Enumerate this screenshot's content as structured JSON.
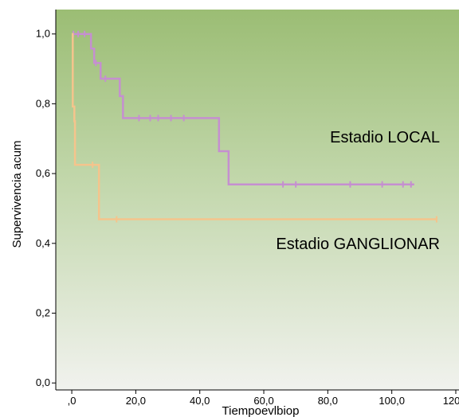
{
  "chart_data": {
    "type": "line",
    "subtype": "kaplan-meier survival step curves",
    "xlabel": "Tiempoevlbiop",
    "ylabel": "Supervivencia acum",
    "xlim": [
      -5,
      121
    ],
    "ylim": [
      -0.02,
      1.07
    ],
    "x_ticks": [
      0,
      20,
      40,
      60,
      80,
      100,
      120
    ],
    "x_tick_labels": [
      ",0",
      "20,0",
      "40,0",
      "60,0",
      "80,0",
      "100,0",
      "120,0"
    ],
    "y_ticks": [
      0,
      0.2,
      0.4,
      0.6,
      0.8,
      1.0
    ],
    "y_tick_labels": [
      "0,0",
      "0,2",
      "0,4",
      "0,6",
      "0,8",
      "1,0"
    ],
    "background": "gradient green (top) to pale gray-white (bottom)",
    "series": [
      {
        "name": "Estadio LOCAL",
        "color": "#c58fd0",
        "steps": [
          [
            0,
            1.0
          ],
          [
            6,
            0.958
          ],
          [
            7,
            0.917
          ],
          [
            9,
            0.872
          ],
          [
            15,
            0.822
          ],
          [
            16,
            0.759
          ],
          [
            46,
            0.664
          ],
          [
            49,
            0.569
          ],
          [
            107,
            0.569
          ]
        ],
        "censored": [
          [
            0.5,
            1.0
          ],
          [
            2,
            1.0
          ],
          [
            4,
            1.0
          ],
          [
            7.5,
            0.917
          ],
          [
            10.5,
            0.872
          ],
          [
            21,
            0.759
          ],
          [
            24.5,
            0.759
          ],
          [
            27,
            0.759
          ],
          [
            31,
            0.759
          ],
          [
            35,
            0.759
          ],
          [
            66,
            0.569
          ],
          [
            70,
            0.569
          ],
          [
            87,
            0.569
          ],
          [
            97,
            0.569
          ],
          [
            103.5,
            0.569
          ],
          [
            106,
            0.569
          ]
        ]
      },
      {
        "name": "Estadio GANGLIONAR",
        "color": "#f5c48c",
        "steps": [
          [
            0,
            1.0
          ],
          [
            0.3,
            0.792
          ],
          [
            0.8,
            0.75
          ],
          [
            1,
            0.625
          ],
          [
            8.5,
            0.469
          ],
          [
            114,
            0.469
          ]
        ],
        "censored": [
          [
            6.5,
            0.625
          ],
          [
            14,
            0.469
          ],
          [
            114,
            0.469
          ]
        ]
      }
    ]
  }
}
